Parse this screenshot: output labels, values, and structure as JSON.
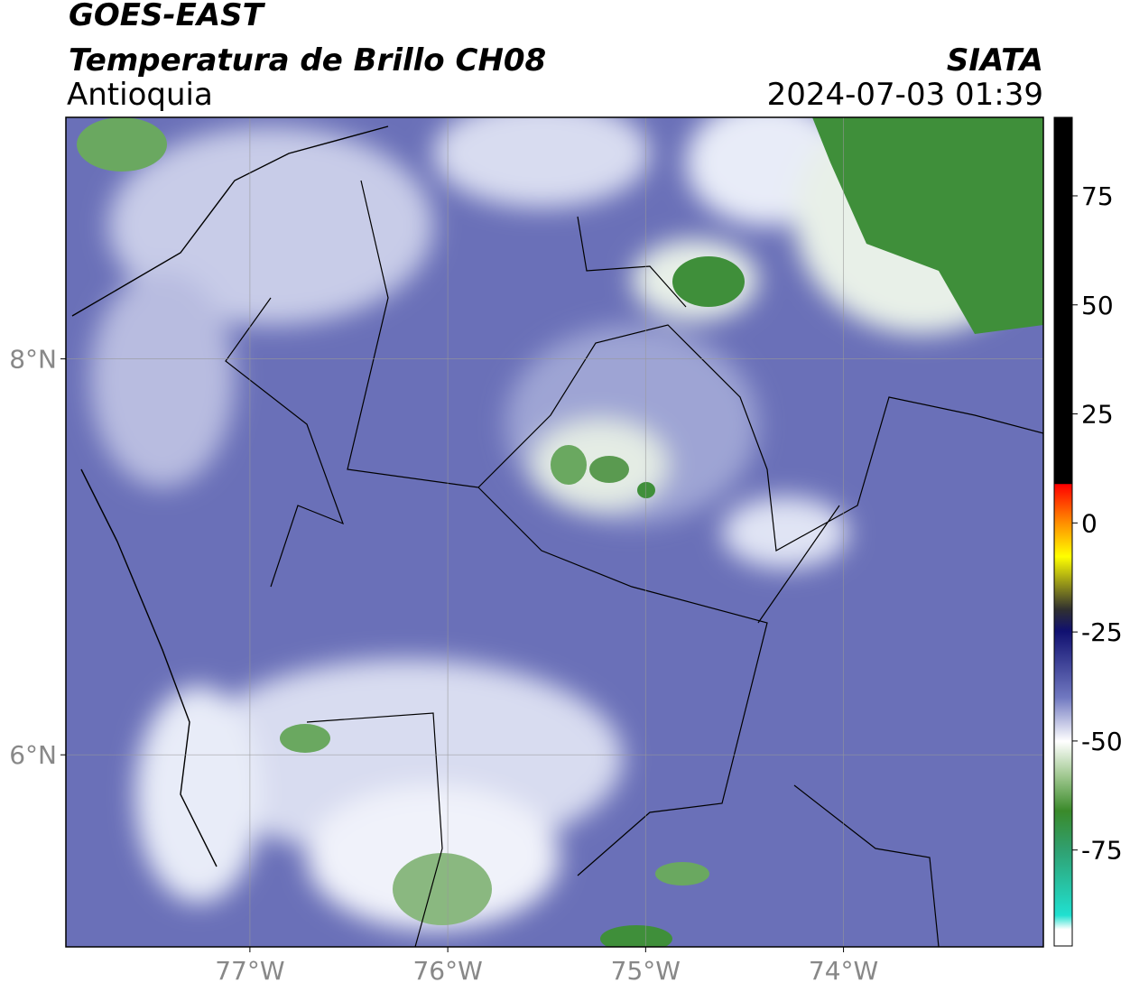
{
  "header": {
    "title": "GOES-EAST",
    "subtitle": "Temperatura de Brillo CH08",
    "source": "SIATA",
    "region": "Antioquia",
    "datetime": "2024-07-03 01:39"
  },
  "map": {
    "xlim": [
      -77.93,
      -72.99
    ],
    "ylim": [
      5.03,
      9.22
    ],
    "xticks": [
      {
        "value": -77,
        "label": "77°W"
      },
      {
        "value": -76,
        "label": "76°W"
      },
      {
        "value": -75,
        "label": "75°W"
      },
      {
        "value": -74,
        "label": "74°W"
      }
    ],
    "yticks": [
      {
        "value": 6,
        "label": "6°N"
      },
      {
        "value": 8,
        "label": "8°N"
      }
    ],
    "grid": true
  },
  "colorbar": {
    "lim": [
      -97,
      93
    ],
    "ticks": [
      75,
      50,
      25,
      0,
      -25,
      -50,
      -75
    ]
  }
}
